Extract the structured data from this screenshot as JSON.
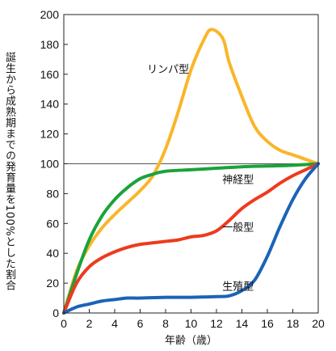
{
  "chart_data": {
    "type": "line",
    "xlabel": "年齢（歳）",
    "ylabel": "誕生から成熟期までの発育量を100%とした割合",
    "xlim": [
      0,
      20
    ],
    "ylim": [
      0,
      200
    ],
    "xticks": [
      0,
      2,
      4,
      6,
      8,
      10,
      12,
      14,
      16,
      18,
      20
    ],
    "yticks": [
      0,
      20,
      40,
      60,
      80,
      100,
      120,
      140,
      160,
      180,
      200
    ],
    "reference_line": 100,
    "grid": false,
    "series": [
      {
        "name": "リンパ型",
        "color": "#f9b62b",
        "label_at": [
          8.2,
          161
        ],
        "points": [
          [
            0,
            0
          ],
          [
            1,
            28
          ],
          [
            2,
            45
          ],
          [
            3,
            57
          ],
          [
            4,
            66
          ],
          [
            5,
            74
          ],
          [
            6,
            82
          ],
          [
            7,
            92
          ],
          [
            8,
            110
          ],
          [
            9,
            135
          ],
          [
            10,
            163
          ],
          [
            11,
            183
          ],
          [
            11.6,
            190
          ],
          [
            12.5,
            184
          ],
          [
            13,
            168
          ],
          [
            14,
            145
          ],
          [
            15,
            125
          ],
          [
            16,
            115
          ],
          [
            17,
            109
          ],
          [
            18,
            106
          ],
          [
            19,
            103
          ],
          [
            20,
            100
          ]
        ]
      },
      {
        "name": "神経型",
        "color": "#1aa33a",
        "label_at": [
          13.7,
          87
        ],
        "points": [
          [
            0,
            0
          ],
          [
            1,
            26
          ],
          [
            2,
            49
          ],
          [
            3,
            65
          ],
          [
            4,
            76
          ],
          [
            5,
            84
          ],
          [
            6,
            90
          ],
          [
            7,
            93
          ],
          [
            8,
            95
          ],
          [
            10,
            96
          ],
          [
            12,
            97
          ],
          [
            14,
            98
          ],
          [
            16,
            98.5
          ],
          [
            18,
            99
          ],
          [
            20,
            100
          ]
        ]
      },
      {
        "name": "一般型",
        "color": "#ee3a1e",
        "label_at": [
          13.7,
          55
        ],
        "points": [
          [
            0,
            0
          ],
          [
            1,
            20
          ],
          [
            2,
            31
          ],
          [
            3,
            37
          ],
          [
            4,
            41
          ],
          [
            5,
            44
          ],
          [
            6,
            46
          ],
          [
            7,
            47
          ],
          [
            8,
            48
          ],
          [
            9,
            49
          ],
          [
            10,
            51
          ],
          [
            11,
            52
          ],
          [
            12,
            55
          ],
          [
            13,
            62
          ],
          [
            14,
            70
          ],
          [
            15,
            76
          ],
          [
            16,
            81
          ],
          [
            17,
            87
          ],
          [
            18,
            92
          ],
          [
            19,
            96
          ],
          [
            20,
            100
          ]
        ]
      },
      {
        "name": "生殖型",
        "color": "#1b63b8",
        "label_at": [
          13.7,
          15.5
        ],
        "points": [
          [
            0,
            0
          ],
          [
            1,
            4
          ],
          [
            2,
            6
          ],
          [
            3,
            8
          ],
          [
            4,
            9
          ],
          [
            5,
            10
          ],
          [
            6,
            10
          ],
          [
            8,
            10.5
          ],
          [
            10,
            10.5
          ],
          [
            12,
            11
          ],
          [
            13,
            11.5
          ],
          [
            14,
            15
          ],
          [
            15,
            22
          ],
          [
            16,
            38
          ],
          [
            17,
            58
          ],
          [
            18,
            76
          ],
          [
            19,
            90
          ],
          [
            20,
            100
          ]
        ]
      }
    ]
  }
}
